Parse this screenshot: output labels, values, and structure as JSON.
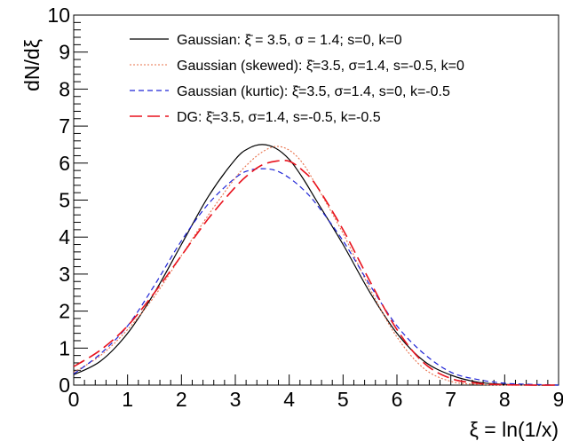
{
  "chart_data": {
    "type": "line",
    "xlabel": "ξ = ln(1/x)",
    "ylabel": "dN/dξ",
    "xlim": [
      0,
      9
    ],
    "ylim": [
      0,
      10
    ],
    "x_ticks": [
      "0",
      "1",
      "2",
      "3",
      "4",
      "5",
      "6",
      "7",
      "8",
      "9"
    ],
    "y_ticks": [
      "0",
      "1",
      "2",
      "3",
      "4",
      "5",
      "6",
      "7",
      "8",
      "9",
      "10"
    ],
    "grid": false,
    "legend_position": "top",
    "x": [
      0,
      0.5,
      1,
      1.5,
      2,
      2.5,
      3,
      3.25,
      3.5,
      3.75,
      4,
      4.25,
      4.5,
      5,
      5.5,
      6,
      6.5,
      7,
      7.5,
      8,
      8.5,
      9
    ],
    "series": [
      {
        "name": "Gaussian: ξ̄ = 3.5, σ = 1.4; s=0, k=0",
        "color": "#000000",
        "dash": "solid",
        "width": 1.2,
        "values": [
          0.28,
          0.65,
          1.4,
          2.5,
          3.8,
          5.1,
          6.1,
          6.4,
          6.5,
          6.4,
          6.1,
          5.6,
          5.0,
          3.8,
          2.5,
          1.4,
          0.65,
          0.27,
          0.08,
          0.02,
          0.0,
          0.0
        ]
      },
      {
        "name": "Gaussian (skewed): ξ̄=3.5, σ=1.4, s=-0.5, k=0",
        "color": "#e8704a",
        "dash": "2,2",
        "width": 1.1,
        "values": [
          0.35,
          0.8,
          1.5,
          2.4,
          3.5,
          4.6,
          5.6,
          6.0,
          6.3,
          6.45,
          6.35,
          6.0,
          5.4,
          4.1,
          2.6,
          1.3,
          0.45,
          0.1,
          0.02,
          0.0,
          0.0,
          0.0
        ]
      },
      {
        "name": "Gaussian (kurtic): ξ̄=3.5, σ=1.4, s=0, k=-0.5",
        "color": "#1f24d6",
        "dash": "6,4",
        "width": 1.2,
        "values": [
          0.3,
          0.85,
          1.6,
          2.7,
          3.9,
          4.9,
          5.6,
          5.8,
          5.85,
          5.8,
          5.6,
          5.3,
          4.9,
          3.9,
          2.7,
          1.6,
          0.85,
          0.35,
          0.15,
          0.05,
          0.02,
          0.0
        ]
      },
      {
        "name": "DG: ξ̄=3.5, σ=1.4, s=-0.5, k=-0.5",
        "color": "#e8121d",
        "dash": "14,6",
        "width": 1.6,
        "values": [
          0.5,
          0.95,
          1.6,
          2.5,
          3.5,
          4.5,
          5.35,
          5.7,
          5.95,
          6.05,
          6.05,
          5.8,
          5.4,
          4.2,
          2.8,
          1.5,
          0.6,
          0.18,
          0.05,
          0.01,
          0.0,
          0.0
        ]
      }
    ]
  }
}
